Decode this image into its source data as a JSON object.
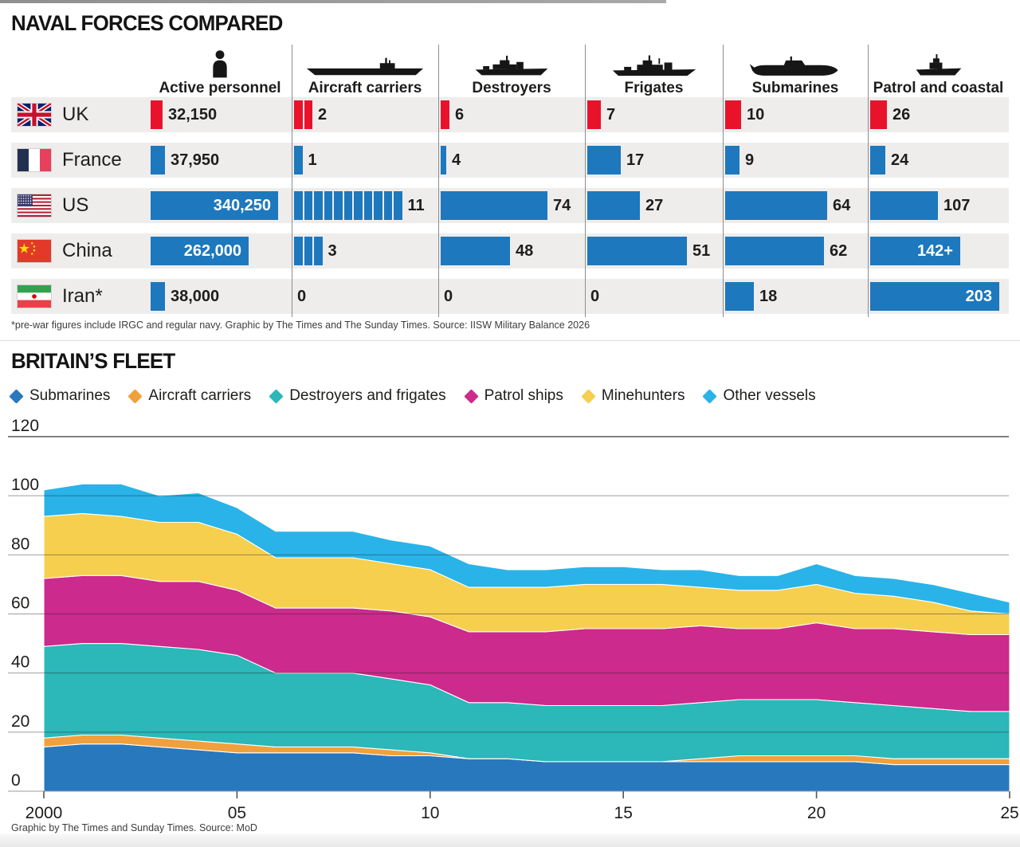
{
  "page": {
    "section1_title": "NAVAL FORCES COMPARED",
    "footnote": "*pre-war figures include IRGC and regular navy. Graphic by The Times and The Sunday Times. Source: IISW Military Balance 2026",
    "section2_title": "BRITAIN’S FLEET",
    "caption": "Graphic by The Times and Sunday Times. Source: MoD"
  },
  "colors": {
    "uk_bar": "#e8132b",
    "default_bar": "#1d78bd",
    "submarines": "#2878bd",
    "aircraft_carriers": "#f0a03c",
    "destroyers_and_frigates": "#2cb7b9",
    "patrol_ships": "#cc2a8c",
    "minehunters": "#f6cf4f",
    "other_vessels": "#29b3e8"
  },
  "naval_table": {
    "columns": [
      {
        "key": "personnel",
        "label": "Active personnel",
        "icon": "person-icon"
      },
      {
        "key": "carriers",
        "label": "Aircraft carriers",
        "icon": "aircraft-carrier-icon"
      },
      {
        "key": "destroyers",
        "label": "Destroyers",
        "icon": "destroyer-icon"
      },
      {
        "key": "frigates",
        "label": "Frigates",
        "icon": "frigate-icon"
      },
      {
        "key": "submarines",
        "label": "Submarines",
        "icon": "submarine-icon"
      },
      {
        "key": "patrol",
        "label": "Patrol and coastal",
        "icon": "patrol-boat-icon"
      }
    ],
    "rows": [
      {
        "country": "UK",
        "flag": "uk",
        "bar_color": "#e8132b",
        "cells": {
          "personnel": {
            "display": "32,150",
            "value": 32150,
            "inside": false
          },
          "carriers": {
            "display": "2",
            "value": 2,
            "inside": false
          },
          "destroyers": {
            "display": "6",
            "value": 6,
            "inside": false
          },
          "frigates": {
            "display": "7",
            "value": 7,
            "inside": false
          },
          "submarines": {
            "display": "10",
            "value": 10,
            "inside": false
          },
          "patrol": {
            "display": "26",
            "value": 26,
            "inside": false
          }
        }
      },
      {
        "country": "France",
        "flag": "france",
        "bar_color": "#1d78bd",
        "cells": {
          "personnel": {
            "display": "37,950",
            "value": 37950,
            "inside": false
          },
          "carriers": {
            "display": "1",
            "value": 1,
            "inside": false
          },
          "destroyers": {
            "display": "4",
            "value": 4,
            "inside": false
          },
          "frigates": {
            "display": "17",
            "value": 17,
            "inside": false
          },
          "submarines": {
            "display": "9",
            "value": 9,
            "inside": false
          },
          "patrol": {
            "display": "24",
            "value": 24,
            "inside": false
          }
        }
      },
      {
        "country": "US",
        "flag": "us",
        "bar_color": "#1d78bd",
        "cells": {
          "personnel": {
            "display": "340,250",
            "value": 340250,
            "inside": true
          },
          "carriers": {
            "display": "11",
            "value": 11,
            "inside": false
          },
          "destroyers": {
            "display": "74",
            "value": 74,
            "inside": false
          },
          "frigates": {
            "display": "27",
            "value": 27,
            "inside": false
          },
          "submarines": {
            "display": "64",
            "value": 64,
            "inside": false
          },
          "patrol": {
            "display": "107",
            "value": 107,
            "inside": false
          }
        }
      },
      {
        "country": "China",
        "flag": "china",
        "bar_color": "#1d78bd",
        "cells": {
          "personnel": {
            "display": "262,000",
            "value": 262000,
            "inside": true
          },
          "carriers": {
            "display": "3",
            "value": 3,
            "inside": false
          },
          "destroyers": {
            "display": "48",
            "value": 48,
            "inside": false
          },
          "frigates": {
            "display": "51",
            "value": 51,
            "inside": false
          },
          "submarines": {
            "display": "62",
            "value": 62,
            "inside": false
          },
          "patrol": {
            "display": "142+",
            "value": 142,
            "inside": true
          }
        }
      },
      {
        "country": "Iran*",
        "flag": "iran",
        "bar_color": "#1d78bd",
        "cells": {
          "personnel": {
            "display": "38,000",
            "value": 38000,
            "inside": false
          },
          "carriers": {
            "display": "0",
            "value": 0,
            "inside": false
          },
          "destroyers": {
            "display": "0",
            "value": 0,
            "inside": false
          },
          "frigates": {
            "display": "0",
            "value": 0,
            "inside": false
          },
          "submarines": {
            "display": "18",
            "value": 18,
            "inside": false
          },
          "patrol": {
            "display": "203",
            "value": 203,
            "inside": true
          }
        }
      }
    ]
  },
  "fleet_chart": {
    "legend": [
      {
        "label": "Submarines",
        "color": "#2878bd"
      },
      {
        "label": "Aircraft carriers",
        "color": "#f0a03c"
      },
      {
        "label": "Destroyers and frigates",
        "color": "#2cb7b9"
      },
      {
        "label": "Patrol ships",
        "color": "#cc2a8c"
      },
      {
        "label": "Minehunters",
        "color": "#f6cf4f"
      },
      {
        "label": "Other vessels",
        "color": "#29b3e8"
      }
    ],
    "y_ticks": [
      120,
      100,
      80,
      60,
      40,
      20,
      0
    ],
    "x_ticks": [
      {
        "year": 2000,
        "label": "2000"
      },
      {
        "year": 2005,
        "label": "05"
      },
      {
        "year": 2010,
        "label": "10"
      },
      {
        "year": 2015,
        "label": "15"
      },
      {
        "year": 2020,
        "label": "20"
      },
      {
        "year": 2025,
        "label": "25"
      }
    ]
  },
  "chart_data": [
    {
      "type": "bar",
      "title": "NAVAL FORCES COMPARED",
      "orientation": "horizontal",
      "categories": [
        "UK",
        "France",
        "US",
        "China",
        "Iran*"
      ],
      "series": [
        {
          "name": "Active personnel",
          "values": [
            32150,
            37950,
            340250,
            262000,
            38000
          ]
        },
        {
          "name": "Aircraft carriers",
          "values": [
            2,
            1,
            11,
            3,
            0
          ]
        },
        {
          "name": "Destroyers",
          "values": [
            6,
            4,
            74,
            48,
            0
          ]
        },
        {
          "name": "Frigates",
          "values": [
            7,
            17,
            27,
            51,
            0
          ]
        },
        {
          "name": "Submarines",
          "values": [
            10,
            9,
            64,
            62,
            18
          ]
        },
        {
          "name": "Patrol and coastal",
          "values": [
            26,
            24,
            107,
            142,
            203
          ]
        }
      ],
      "value_labels": {
        "patrol_china": "142+",
        "note": "*pre-war figures include IRGC and regular navy. Graphic by The Times and The Sunday Times. Source: IISW Military Balance 2026"
      }
    },
    {
      "type": "area",
      "stacked": true,
      "title": "BRITAIN'S FLEET",
      "x": [
        2000,
        2001,
        2002,
        2003,
        2004,
        2005,
        2006,
        2007,
        2008,
        2009,
        2010,
        2011,
        2012,
        2013,
        2014,
        2015,
        2016,
        2017,
        2018,
        2019,
        2020,
        2021,
        2022,
        2023,
        2024,
        2025
      ],
      "series": [
        {
          "name": "Submarines",
          "values": [
            15,
            16,
            16,
            15,
            14,
            13,
            13,
            13,
            13,
            12,
            12,
            11,
            11,
            10,
            10,
            10,
            10,
            10,
            10,
            10,
            10,
            10,
            9,
            9,
            9,
            9
          ]
        },
        {
          "name": "Aircraft carriers",
          "values": [
            3,
            3,
            3,
            3,
            3,
            3,
            2,
            2,
            2,
            2,
            1,
            0,
            0,
            0,
            0,
            0,
            0,
            1,
            2,
            2,
            2,
            2,
            2,
            2,
            2,
            2
          ]
        },
        {
          "name": "Destroyers and frigates",
          "values": [
            31,
            31,
            31,
            31,
            31,
            30,
            25,
            25,
            25,
            24,
            23,
            19,
            19,
            19,
            19,
            19,
            19,
            19,
            19,
            19,
            19,
            18,
            18,
            17,
            16,
            16
          ]
        },
        {
          "name": "Patrol ships",
          "values": [
            23,
            23,
            23,
            22,
            23,
            22,
            22,
            22,
            22,
            23,
            23,
            24,
            24,
            25,
            26,
            26,
            26,
            26,
            24,
            24,
            26,
            25,
            26,
            26,
            26,
            26
          ]
        },
        {
          "name": "Minehunters",
          "values": [
            21,
            21,
            20,
            20,
            20,
            19,
            17,
            17,
            17,
            16,
            16,
            15,
            15,
            15,
            15,
            15,
            15,
            13,
            13,
            13,
            13,
            12,
            11,
            10,
            8,
            7
          ]
        },
        {
          "name": "Other vessels",
          "values": [
            9,
            10,
            11,
            9,
            10,
            9,
            9,
            9,
            9,
            8,
            8,
            8,
            6,
            6,
            6,
            6,
            5,
            6,
            5,
            5,
            7,
            6,
            6,
            6,
            6,
            4
          ]
        }
      ],
      "ylim": [
        0,
        120
      ],
      "yticks": [
        0,
        20,
        40,
        60,
        80,
        100,
        120
      ],
      "xtick_labels": [
        "2000",
        "05",
        "10",
        "15",
        "20",
        "25"
      ],
      "grid": true,
      "legend_position": "top",
      "caption": "Graphic by The Times and Sunday Times. Source: MoD"
    }
  ]
}
